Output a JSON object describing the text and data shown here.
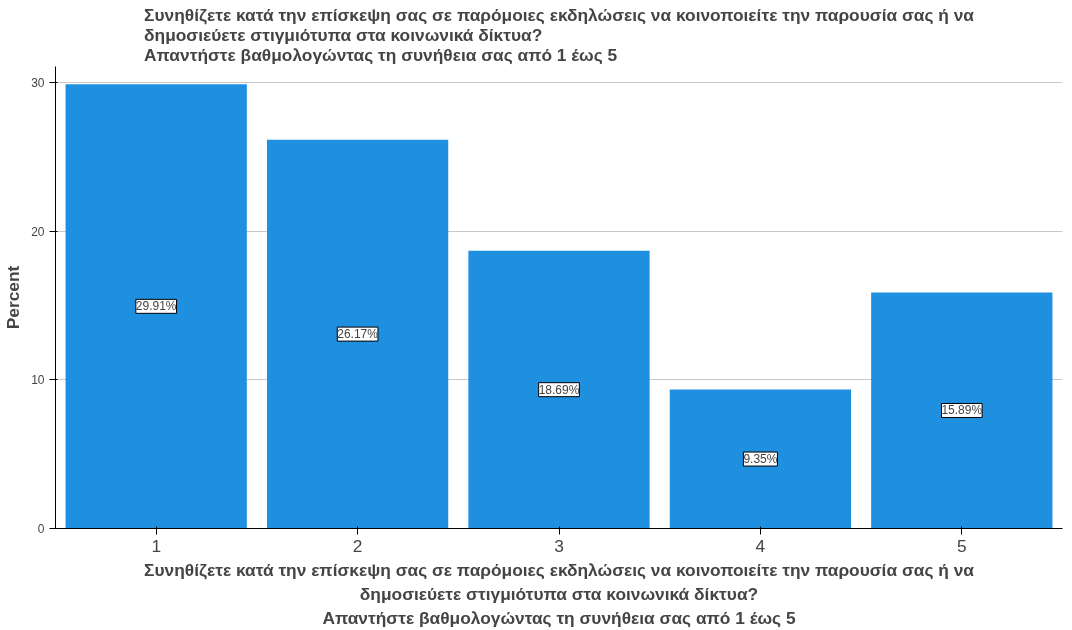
{
  "chart_data": {
    "type": "bar",
    "title": "Συνηθίζετε κατά την επίσκεψη σας σε παρόμοιες εκδηλώσεις να κοινοποιείτε την παρουσία σας ή να\nδημοσιεύετε στιγμιότυπα στα κοινωνικά δίκτυα?\nΑπαντήστε βαθμολογώντας τη συνήθεια σας από 1 έως 5",
    "xlabel": "Συνηθίζετε κατά την επίσκεψη σας σε παρόμοιες εκδηλώσεις να κοινοποιείτε την παρουσία σας ή να\nδημοσιεύετε στιγμιότυπα στα κοινωνικά δίκτυα?\nΑπαντήστε βαθμολογώντας τη συνήθεια σας από 1 έως 5",
    "ylabel": "Percent",
    "categories": [
      "1",
      "2",
      "3",
      "4",
      "5"
    ],
    "values": [
      29.91,
      26.17,
      18.69,
      9.35,
      15.89
    ],
    "value_labels": [
      "29.91%",
      "26.17%",
      "18.69%",
      "9.35%",
      "15.89%"
    ],
    "color": "#1f8fe0",
    "ylim": [
      0,
      31.1
    ],
    "yticks": [
      0,
      10,
      20,
      30
    ],
    "grid": "y"
  }
}
